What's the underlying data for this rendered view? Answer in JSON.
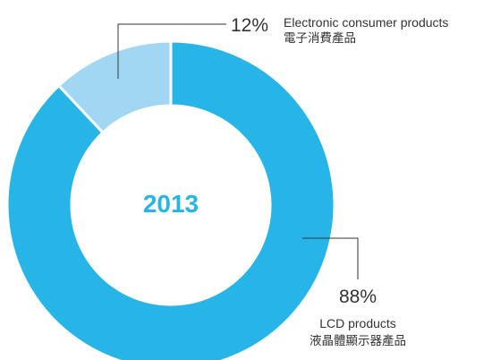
{
  "chart_data": {
    "type": "pie",
    "style": "donut",
    "center_label": "2013",
    "slices": [
      {
        "name_en": "LCD products",
        "name_zh": "液晶體顯示器產品",
        "value": 88,
        "pct_label": "88%",
        "color": "#27b5e8"
      },
      {
        "name_en": "Electronic consumer products",
        "name_zh": "電子消費產品",
        "value": 12,
        "pct_label": "12%",
        "color": "#a2d7f4"
      }
    ],
    "colors": {
      "center_text": "#27b5e8",
      "leader_line": "#333333",
      "separator": "#ffffff"
    }
  }
}
